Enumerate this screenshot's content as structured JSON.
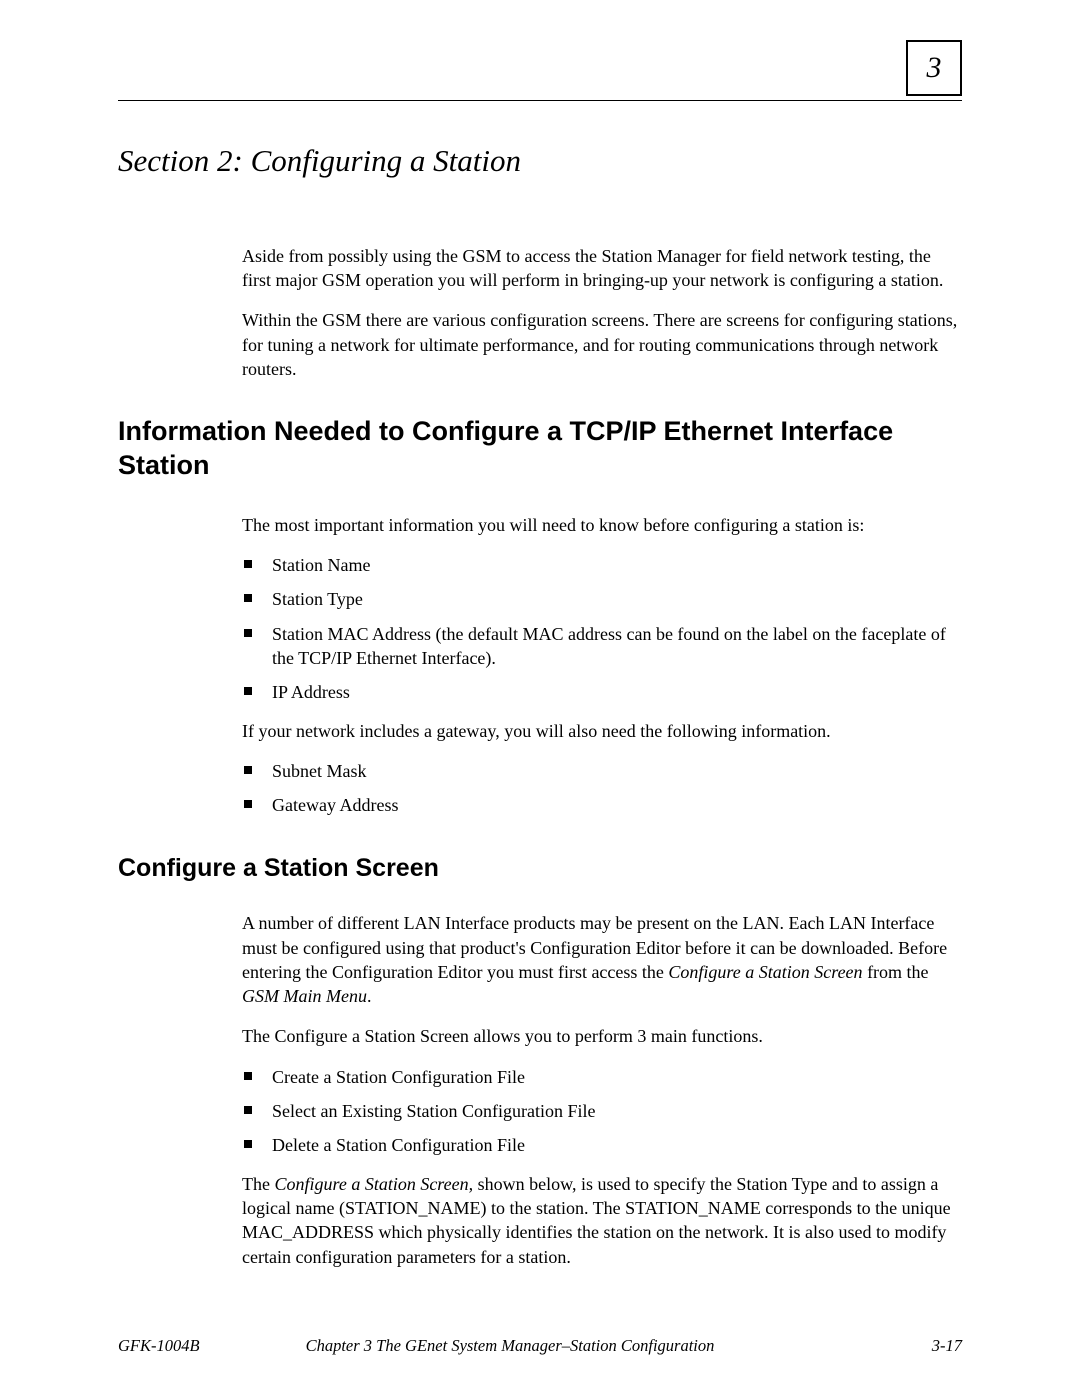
{
  "chapter_number": "3",
  "section_title": "Section 2: Configuring a Station",
  "intro_p1": "Aside from possibly using the GSM to access the Station Manager for field network testing, the first major GSM operation you will perform in bringing-up your network is configuring a station.",
  "intro_p2": "Within the GSM there are various configuration screens.  There are screens for configuring stations, for tuning a network for ultimate performance, and for routing communications through network routers.",
  "h2_info": "Information Needed to Configure a TCP/IP Ethernet Interface Station",
  "info_p1": "The most important information you will need to know before configuring a station is:",
  "info_list1": {
    "i0": "Station Name",
    "i1": "Station Type",
    "i2": "Station MAC Address (the default MAC address can be found on the label on the faceplate of the TCP/IP Ethernet  Interface).",
    "i3": "IP Address"
  },
  "info_p2": "If your network includes a gateway, you will also need the following information.",
  "info_list2": {
    "i0": "Subnet Mask",
    "i1": "Gateway Address"
  },
  "h3_configure": "Configure a Station Screen",
  "cfg_p1_a": "A number of different LAN Interface products may be present on the LAN.  Each LAN Interface must be configured using that product's Configuration Editor before it can be downloaded.  Before entering the Configuration Editor you must first access the ",
  "cfg_p1_em1": "Configure a Station Screen",
  "cfg_p1_b": " from the ",
  "cfg_p1_em2": "GSM Main Menu",
  "cfg_p1_c": ".",
  "cfg_p2": "The Configure a Station Screen allows you to perform 3 main functions.",
  "cfg_list": {
    "i0": "Create a Station Configuration File",
    "i1": "Select an Existing Station Configuration File",
    "i2": "Delete a Station Configuration File"
  },
  "cfg_p3_a": "The ",
  "cfg_p3_em": "Configure a Station Screen,",
  "cfg_p3_b": " shown below, is used to specify the Station Type and to assign a logical name (STATION_NAME) to the station.  The STATION_NAME corresponds to the unique MAC_ADDRESS which physically identifies the station on the network.  It is also used to modify certain configuration parameters for a station.",
  "footer": {
    "left": "GFK-1004B",
    "mid": "Chapter 3  The GEnet System Manager–Station   Configuration",
    "right": "3-17"
  }
}
